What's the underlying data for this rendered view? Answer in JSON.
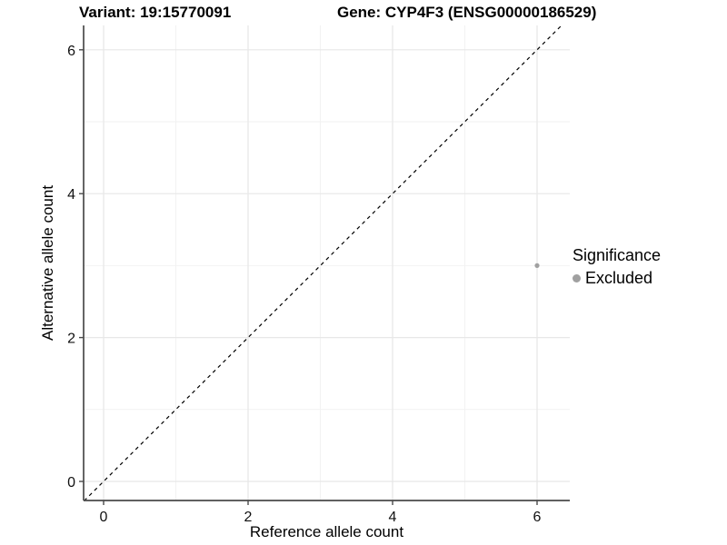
{
  "header": {
    "variant_title": "Variant: 19:15770091",
    "gene_title": "Gene: CYP4F3 (ENSG00000186529)"
  },
  "axes": {
    "x_label": "Reference allele count",
    "y_label": "Alternative allele count"
  },
  "legend": {
    "title": "Significance",
    "entries": [
      {
        "label": "Excluded",
        "color": "#a0a0a0"
      }
    ]
  },
  "chart_data": {
    "type": "scatter",
    "title_left": "Variant: 19:15770091",
    "title_right": "Gene: CYP4F3 (ENSG00000186529)",
    "xlabel": "Reference allele count",
    "ylabel": "Alternative allele count",
    "x_ticks": [
      0,
      2,
      4,
      6
    ],
    "y_ticks": [
      0,
      2,
      4,
      6
    ],
    "x_minor": [
      1,
      3,
      5
    ],
    "y_minor": [
      1,
      3,
      5
    ],
    "xlim": [
      -0.28,
      6.45
    ],
    "ylim": [
      -0.27,
      6.34
    ],
    "series": [
      {
        "name": "Excluded",
        "color": "#a0a0a0",
        "points": [
          [
            6,
            3
          ]
        ]
      }
    ],
    "reference_line": {
      "type": "identity",
      "style": "dashed",
      "color": "#000000"
    },
    "grid": {
      "major_color": "#e7e7e7",
      "minor_color": "#f2f2f2",
      "background": "#ffffff"
    },
    "axis_color": "#4a4a4a",
    "tick_label_color": "#111111",
    "legend": {
      "title": "Significance",
      "position": "right",
      "entries": [
        "Excluded"
      ]
    }
  }
}
